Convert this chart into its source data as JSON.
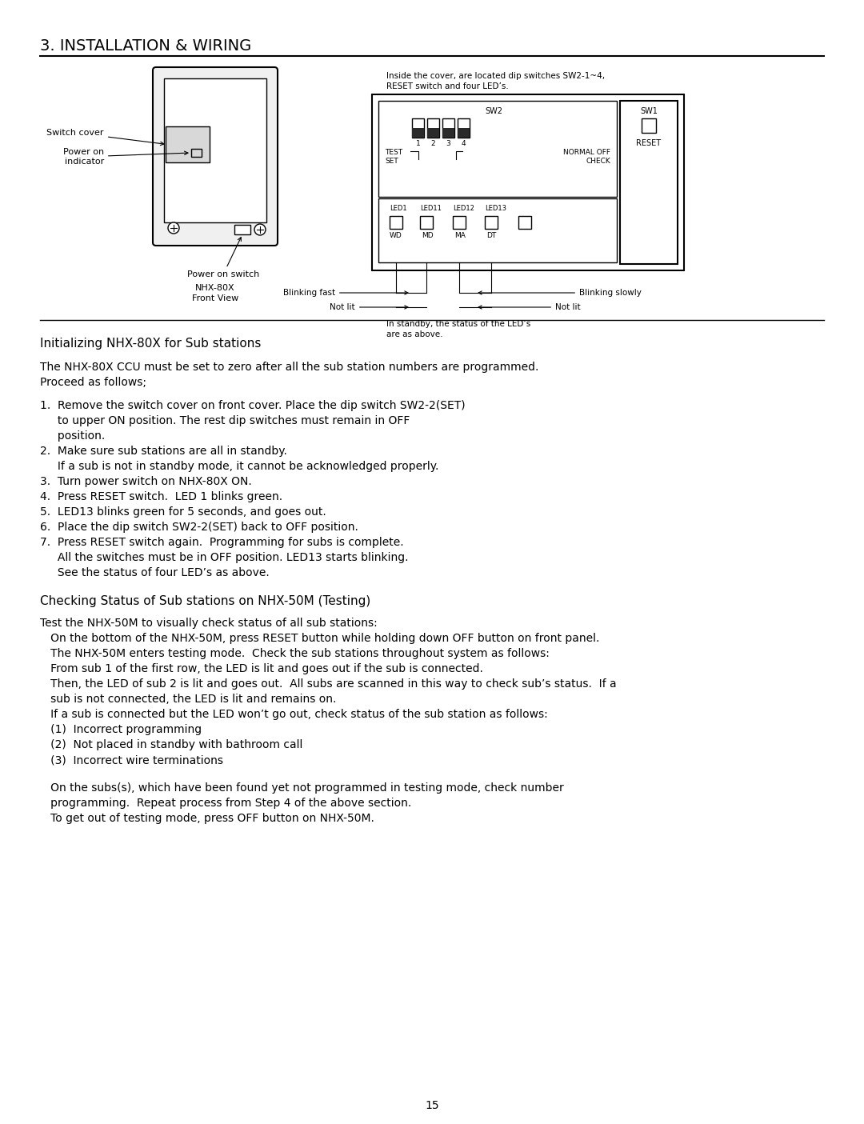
{
  "title": "3. INSTALLATION & WIRING",
  "page_number": "15",
  "background_color": "#ffffff",
  "text_color": "#000000",
  "section1_heading": "Initializing NHX-80X for Sub stations",
  "section1_intro_lines": [
    "The NHX-80X CCU must be set to zero after all the sub station numbers are programmed.",
    "Proceed as follows;"
  ],
  "section1_steps": [
    "1.  Remove the switch cover on front cover. Place the dip switch SW2-2(SET)",
    "     to upper ON position. The rest dip switches must remain in OFF",
    "     position.",
    "2.  Make sure sub stations are all in standby.",
    "     If a sub is not in standby mode, it cannot be acknowledged properly.",
    "3.  Turn power switch on NHX-80X ON.",
    "4.  Press RESET switch.  LED 1 blinks green.",
    "5.  LED13 blinks green for 5 seconds, and goes out.",
    "6.  Place the dip switch SW2-2(SET) back to OFF position.",
    "7.  Press RESET switch again.  Programming for subs is complete.",
    "     All the switches must be in OFF position. LED13 starts blinking.",
    "     See the status of four LED’s as above."
  ],
  "section2_heading": "Checking Status of Sub stations on NHX-50M (Testing)",
  "section2_lines": [
    "Test the NHX-50M to visually check status of all sub stations:",
    "   On the bottom of the NHX-50M, press RESET button while holding down OFF button on front panel.",
    "   The NHX-50M enters testing mode.  Check the sub stations throughout system as follows:",
    "   From sub 1 of the first row, the LED is lit and goes out if the sub is connected.",
    "   Then, the LED of sub 2 is lit and goes out.  All subs are scanned in this way to check sub’s status.  If a",
    "   sub is not connected, the LED is lit and remains on.",
    "   If a sub is connected but the LED won’t go out, check status of the sub station as follows:",
    "   (1)  Incorrect programming",
    "   (2)  Not placed in standby with bathroom call",
    "   (3)  Incorrect wire terminations"
  ],
  "section2_final_lines": [
    "   On the subs(s), which have been found yet not programmed in testing mode, check number",
    "   programming.  Repeat process from Step 4 of the above section.",
    "   To get out of testing mode, press OFF button on NHX-50M."
  ],
  "diagram_note_lines": [
    "Inside the cover, are located dip switches SW2-1~4,",
    "RESET switch and four LED’s."
  ],
  "diagram_standby_note_lines": [
    "In standby, the status of the LED’s",
    "are as above."
  ],
  "blinking_fast": "Blinking fast",
  "blinking_slowly": "Blinking slowly",
  "not_lit_left": "Not lit",
  "not_lit_right": "Not lit",
  "nhx_label": "NHX-80X",
  "front_view_label": "Front View",
  "switch_cover_label": "Switch cover",
  "power_on_indicator_label": "Power on\nindicator",
  "power_on_switch_label": "Power on switch"
}
